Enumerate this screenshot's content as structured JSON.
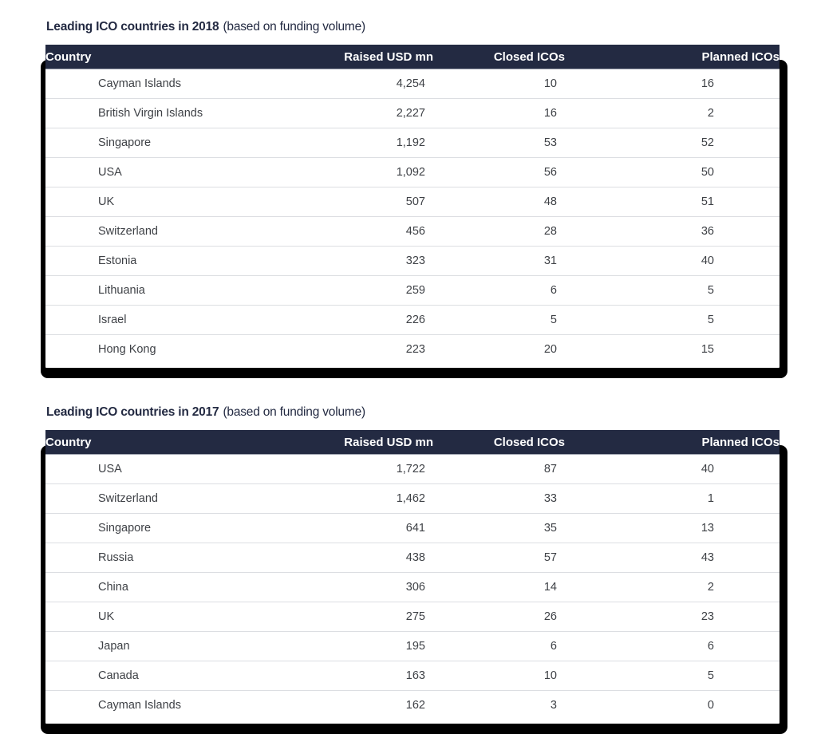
{
  "colors": {
    "header_bg": "#232a42",
    "header_text": "#ffffff",
    "title_text": "#232a42",
    "body_text": "#3e4146",
    "row_divider": "#dcdee2",
    "header_divider": "#9fa3b0",
    "card_shadow": "#000000",
    "card_bg": "#ffffff"
  },
  "chart_data": [
    {
      "type": "table",
      "title": "Leading ICO countries in 2018 (based on funding volume)",
      "title_main": "Leading ICO countries in 2018",
      "title_suffix": "(based on funding volume)",
      "columns": [
        "Country",
        "Raised USD mn",
        "Closed ICOs",
        "Planned ICOs"
      ],
      "rows": [
        [
          "Cayman Islands",
          "4,254",
          "10",
          "16"
        ],
        [
          "British Virgin Islands",
          "2,227",
          "16",
          "2"
        ],
        [
          "Singapore",
          "1,192",
          "53",
          "52"
        ],
        [
          "USA",
          "1,092",
          "56",
          "50"
        ],
        [
          "UK",
          "507",
          "48",
          "51"
        ],
        [
          "Switzerland",
          "456",
          "28",
          "36"
        ],
        [
          "Estonia",
          "323",
          "31",
          "40"
        ],
        [
          "Lithuania",
          "259",
          "6",
          "5"
        ],
        [
          "Israel",
          "226",
          "5",
          "5"
        ],
        [
          "Hong Kong",
          "223",
          "20",
          "15"
        ]
      ]
    },
    {
      "type": "table",
      "title": "Leading ICO countries in 2017 (based on funding volume)",
      "title_main": "Leading ICO countries in 2017",
      "title_suffix": "(based on funding volume)",
      "columns": [
        "Country",
        "Raised USD mn",
        "Closed ICOs",
        "Planned ICOs"
      ],
      "rows": [
        [
          "USA",
          "1,722",
          "87",
          "40"
        ],
        [
          "Switzerland",
          "1,462",
          "33",
          "1"
        ],
        [
          "Singapore",
          "641",
          "35",
          "13"
        ],
        [
          "Russia",
          "438",
          "57",
          "43"
        ],
        [
          "China",
          "306",
          "14",
          "2"
        ],
        [
          "UK",
          "275",
          "26",
          "23"
        ],
        [
          "Japan",
          "195",
          "6",
          "6"
        ],
        [
          "Canada",
          "163",
          "10",
          "5"
        ],
        [
          "Cayman Islands",
          "162",
          "3",
          "0"
        ]
      ]
    }
  ]
}
